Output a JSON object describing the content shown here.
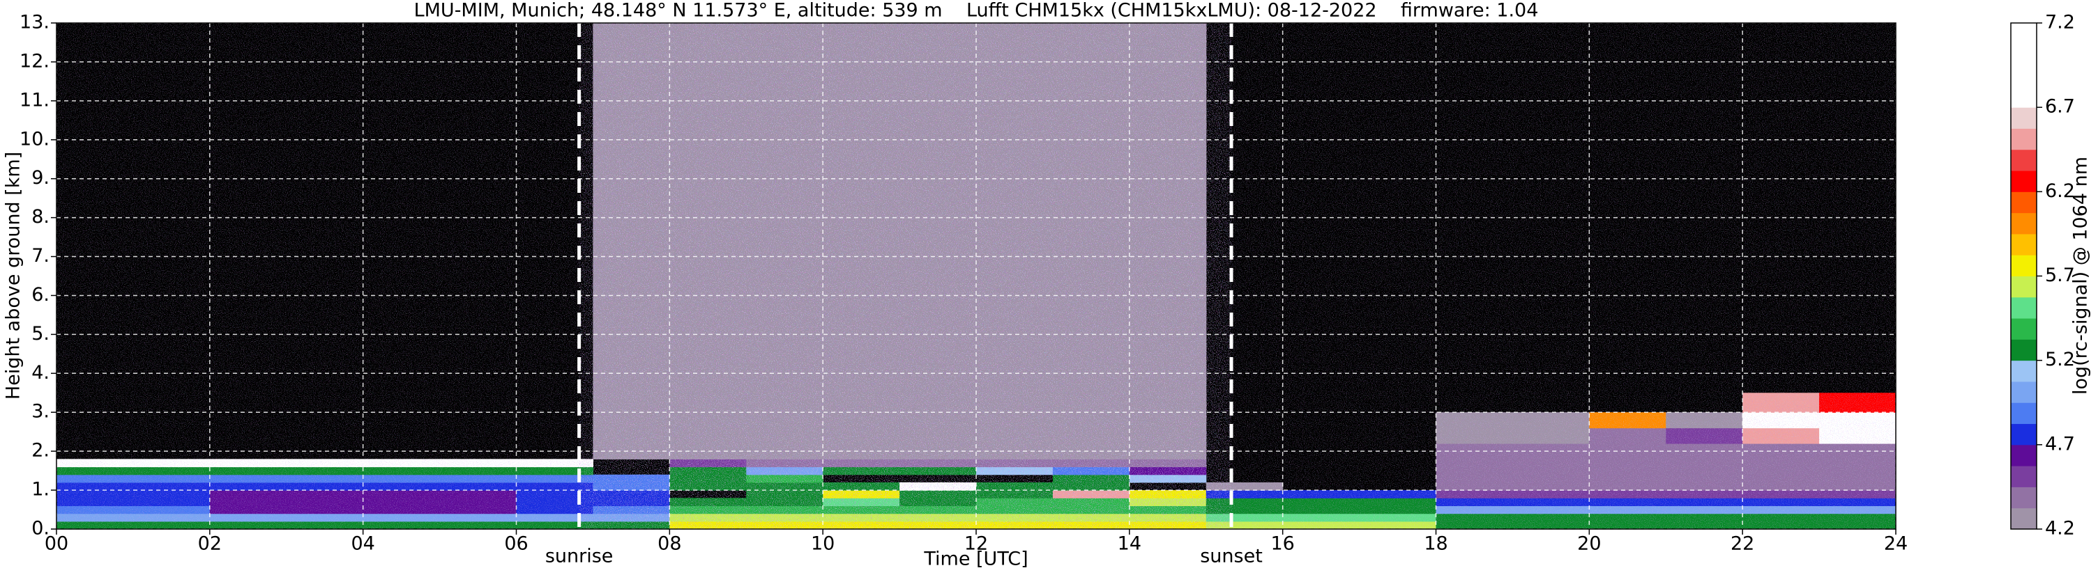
{
  "chart_data": {
    "type": "heatmap",
    "title": "LMU-MIM, Munich; 48.148° N 11.573° E, altitude: 539 m    Lufft CHM15kx (CHM15kxLMU): 08-12-2022    firmware: 1.04",
    "xlabel": "Time [UTC]",
    "ylabel": "Height above ground [km]",
    "xlim": [
      0,
      24
    ],
    "ylim": [
      0,
      13
    ],
    "xticks": [
      {
        "value": 0,
        "label": "00"
      },
      {
        "value": 2,
        "label": "02"
      },
      {
        "value": 4,
        "label": "04"
      },
      {
        "value": 6,
        "label": "06"
      },
      {
        "value": 8,
        "label": "08"
      },
      {
        "value": 10,
        "label": "10"
      },
      {
        "value": 12,
        "label": "12"
      },
      {
        "value": 14,
        "label": "14"
      },
      {
        "value": 16,
        "label": "16"
      },
      {
        "value": 18,
        "label": "18"
      },
      {
        "value": 20,
        "label": "20"
      },
      {
        "value": 22,
        "label": "22"
      },
      {
        "value": 24,
        "label": "24"
      }
    ],
    "yticks": [
      {
        "value": 0,
        "label": "0."
      },
      {
        "value": 1,
        "label": "1."
      },
      {
        "value": 2,
        "label": "2."
      },
      {
        "value": 3,
        "label": "3."
      },
      {
        "value": 4,
        "label": "4."
      },
      {
        "value": 5,
        "label": "5."
      },
      {
        "value": 6,
        "label": "6."
      },
      {
        "value": 7,
        "label": "7."
      },
      {
        "value": 8,
        "label": "8."
      },
      {
        "value": 9,
        "label": "9."
      },
      {
        "value": 10,
        "label": "10."
      },
      {
        "value": 11,
        "label": "11."
      },
      {
        "value": 12,
        "label": "12."
      },
      {
        "value": 13,
        "label": "13."
      }
    ],
    "grid": true,
    "annotations": [
      {
        "text": "sunrise",
        "x": 6.82
      },
      {
        "text": "sunset",
        "x": 15.33
      }
    ],
    "x_edges": [
      0,
      1,
      2,
      3,
      4,
      5,
      6,
      7,
      8,
      9,
      10,
      11,
      12,
      13,
      14,
      15,
      16,
      17,
      18,
      19,
      20,
      21,
      22,
      23,
      24
    ],
    "y_edges": [
      0,
      0.2,
      0.4,
      0.6,
      0.8,
      1.0,
      1.2,
      1.4,
      1.6,
      1.8,
      2.2,
      2.6,
      3.0,
      3.5,
      13
    ],
    "z": [
      [
        5.3,
        5.3,
        5.3,
        5.3,
        5.3,
        5.3,
        5.3,
        5.2,
        5.8,
        5.8,
        5.8,
        5.8,
        5.8,
        5.8,
        5.8,
        5.6,
        5.6,
        5.6,
        5.3,
        5.3,
        5.3,
        5.3,
        5.3,
        5.3
      ],
      [
        5.0,
        5.0,
        5.0,
        5.0,
        5.0,
        5.0,
        5.0,
        5.0,
        5.6,
        5.6,
        5.6,
        5.6,
        5.6,
        5.6,
        5.6,
        5.5,
        5.5,
        5.5,
        5.3,
        5.3,
        5.3,
        5.3,
        5.3,
        5.3
      ],
      [
        4.9,
        4.9,
        4.6,
        4.6,
        4.6,
        4.6,
        4.8,
        4.9,
        5.4,
        5.4,
        5.4,
        5.4,
        5.4,
        5.4,
        5.4,
        5.3,
        5.3,
        5.3,
        5.0,
        5.0,
        5.0,
        5.0,
        5.0,
        5.0
      ],
      [
        4.8,
        4.8,
        4.6,
        4.6,
        4.6,
        4.6,
        4.75,
        4.8,
        5.3,
        5.3,
        5.5,
        5.3,
        5.4,
        5.4,
        5.6,
        5.2,
        5.2,
        5.2,
        4.8,
        4.8,
        4.8,
        4.8,
        4.8,
        4.8
      ],
      [
        4.8,
        4.8,
        4.6,
        4.6,
        4.6,
        4.6,
        4.75,
        4.8,
        null,
        5.2,
        5.8,
        5.3,
        5.3,
        6.5,
        5.8,
        4.7,
        4.7,
        4.7,
        4.5,
        4.5,
        4.5,
        4.5,
        4.5,
        4.5
      ],
      [
        4.8,
        4.8,
        4.7,
        4.7,
        4.7,
        4.7,
        4.8,
        4.85,
        5.2,
        5.2,
        5.3,
        7.0,
        5.3,
        5.2,
        null,
        4.3,
        null,
        null,
        4.4,
        4.4,
        4.4,
        4.4,
        4.4,
        4.4
      ],
      [
        4.85,
        4.85,
        4.85,
        4.85,
        4.85,
        4.85,
        4.85,
        4.9,
        5.3,
        5.4,
        null,
        null,
        null,
        5.3,
        5.1,
        null,
        null,
        null,
        4.35,
        4.35,
        4.35,
        4.35,
        4.35,
        4.35
      ],
      [
        5.3,
        5.3,
        5.3,
        5.3,
        5.3,
        5.3,
        5.3,
        null,
        5.2,
        5.0,
        5.3,
        5.2,
        5.1,
        4.9,
        4.6,
        null,
        null,
        null,
        4.35,
        4.35,
        4.35,
        4.35,
        4.35,
        4.35
      ],
      [
        6.9,
        6.9,
        6.9,
        6.9,
        6.9,
        6.9,
        6.9,
        null,
        4.5,
        4.4,
        4.4,
        4.4,
        4.4,
        4.4,
        4.4,
        null,
        null,
        null,
        4.35,
        4.35,
        4.35,
        4.35,
        4.35,
        4.35
      ],
      [
        null,
        null,
        null,
        null,
        null,
        null,
        null,
        4.3,
        4.3,
        4.3,
        4.3,
        4.3,
        4.3,
        4.3,
        4.3,
        null,
        null,
        null,
        4.35,
        4.35,
        4.35,
        4.35,
        4.35,
        4.35
      ],
      [
        null,
        null,
        null,
        null,
        null,
        null,
        null,
        4.3,
        4.3,
        4.3,
        4.3,
        4.3,
        4.3,
        4.3,
        4.3,
        null,
        null,
        null,
        4.25,
        4.3,
        4.4,
        4.5,
        6.5,
        6.9
      ],
      [
        null,
        null,
        null,
        null,
        null,
        null,
        null,
        4.3,
        4.3,
        4.3,
        4.3,
        4.3,
        4.3,
        4.3,
        4.3,
        null,
        null,
        null,
        4.25,
        4.25,
        6.0,
        4.3,
        6.9,
        6.8
      ],
      [
        null,
        null,
        null,
        null,
        null,
        null,
        null,
        4.3,
        4.3,
        4.3,
        4.3,
        4.3,
        4.3,
        4.3,
        4.3,
        null,
        null,
        null,
        null,
        null,
        null,
        null,
        6.5,
        6.2
      ],
      [
        null,
        null,
        null,
        null,
        null,
        null,
        null,
        4.3,
        4.3,
        4.3,
        4.3,
        4.3,
        4.3,
        4.3,
        4.3,
        null,
        null,
        null,
        null,
        null,
        null,
        null,
        null,
        null
      ]
    ],
    "colorbar": {
      "label": "log(rc-signal) @ 1064 nm",
      "lim": [
        4.2,
        7.2
      ],
      "ticks": [
        4.2,
        4.7,
        5.2,
        5.7,
        6.2,
        6.7,
        7.2
      ],
      "colors": [
        "#a093a8",
        "#9272a4",
        "#7a3e9f",
        "#5e0c98",
        "#1a2ee0",
        "#4d7cf2",
        "#7aa5f2",
        "#9cc4f4",
        "#0a8a2a",
        "#2ab84a",
        "#5ee08a",
        "#c8f050",
        "#f4f000",
        "#ffc000",
        "#ff8c00",
        "#ff5a00",
        "#ff0000",
        "#f04040",
        "#f0a0a0",
        "#ecd0d0",
        "#ffffff",
        "#ffffff",
        "#ffffff",
        "#ffffff"
      ]
    }
  }
}
